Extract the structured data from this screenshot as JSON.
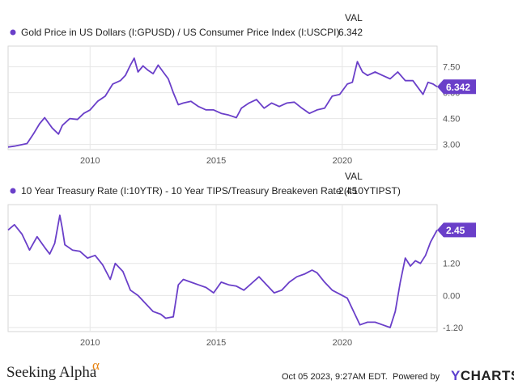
{
  "chart_data": [
    {
      "type": "line",
      "title": "Gold Price in US Dollars (I:GPUSD) / US Consumer Price Index (I:USCPI)",
      "value_header": "VAL",
      "last_value_label": "6.342",
      "last_value": 6.342,
      "y_ticks": [
        "7.50",
        "6.00",
        "4.50",
        "3.00"
      ],
      "y_tick_values": [
        7.5,
        6.0,
        4.5,
        3.0
      ],
      "ylim": [
        2.7,
        8.7
      ],
      "x_ticks": [
        "2010",
        "2015",
        "2020"
      ],
      "x_tick_values": [
        2010,
        2015,
        2020
      ],
      "xlim": [
        2006.75,
        2023.76
      ],
      "color": "#6a3fc9",
      "series": [
        {
          "name": "Gold Price in US Dollars (I:GPUSD) / US Consumer Price Index (I:USCPI)",
          "x": [
            2006.75,
            2007.0,
            2007.5,
            2007.75,
            2008.0,
            2008.2,
            2008.5,
            2008.75,
            2008.9,
            2009.2,
            2009.5,
            2009.75,
            2010.0,
            2010.3,
            2010.6,
            2010.9,
            2011.2,
            2011.4,
            2011.6,
            2011.75,
            2011.9,
            2012.1,
            2012.3,
            2012.5,
            2012.7,
            2012.9,
            2013.1,
            2013.3,
            2013.5,
            2013.7,
            2014.0,
            2014.3,
            2014.6,
            2014.9,
            2015.2,
            2015.5,
            2015.8,
            2016.0,
            2016.3,
            2016.6,
            2016.9,
            2017.2,
            2017.5,
            2017.8,
            2018.1,
            2018.4,
            2018.7,
            2019.0,
            2019.3,
            2019.6,
            2019.9,
            2020.2,
            2020.4,
            2020.6,
            2020.8,
            2021.0,
            2021.3,
            2021.6,
            2021.9,
            2022.2,
            2022.5,
            2022.8,
            2023.0,
            2023.2,
            2023.4,
            2023.6,
            2023.76
          ],
          "values": [
            2.85,
            2.9,
            3.05,
            3.6,
            4.2,
            4.55,
            3.95,
            3.6,
            4.1,
            4.5,
            4.45,
            4.8,
            5.0,
            5.5,
            5.8,
            6.5,
            6.7,
            7.0,
            7.6,
            8.0,
            7.2,
            7.55,
            7.3,
            7.1,
            7.6,
            7.2,
            6.8,
            6.0,
            5.3,
            5.4,
            5.5,
            5.2,
            5.0,
            5.0,
            4.8,
            4.7,
            4.55,
            5.1,
            5.4,
            5.6,
            5.1,
            5.4,
            5.2,
            5.4,
            5.45,
            5.1,
            4.8,
            5.0,
            5.1,
            5.8,
            5.9,
            6.5,
            6.6,
            7.8,
            7.2,
            7.0,
            7.2,
            7.0,
            6.8,
            7.2,
            6.7,
            6.7,
            6.3,
            5.9,
            6.6,
            6.5,
            6.34
          ]
        }
      ]
    },
    {
      "type": "line",
      "title": "10 Year Treasury Rate (I:10YTR) - 10 Year TIPS/Treasury Breakeven Rate   (I:10YTIPST)",
      "value_header": "VAL",
      "last_value_label": "2.45",
      "last_value": 2.45,
      "y_ticks": [
        "1.20",
        "0.00",
        "-1.20"
      ],
      "y_tick_values": [
        1.2,
        0.0,
        -1.2
      ],
      "ylim": [
        -1.35,
        3.4
      ],
      "x_ticks": [
        "2010",
        "2015",
        "2020"
      ],
      "x_tick_values": [
        2010,
        2015,
        2020
      ],
      "xlim": [
        2006.75,
        2023.76
      ],
      "color": "#6a3fc9",
      "series": [
        {
          "name": "10 Year Treasury Rate (I:10YTR) - 10 Year TIPS/Treasury Breakeven Rate (I:10YTIPST)",
          "x": [
            2006.75,
            2007.0,
            2007.3,
            2007.6,
            2007.9,
            2008.2,
            2008.4,
            2008.6,
            2008.8,
            2008.9,
            2009.0,
            2009.3,
            2009.6,
            2009.9,
            2010.2,
            2010.5,
            2010.8,
            2011.0,
            2011.3,
            2011.6,
            2011.9,
            2012.2,
            2012.5,
            2012.8,
            2013.0,
            2013.3,
            2013.5,
            2013.7,
            2014.0,
            2014.3,
            2014.6,
            2014.9,
            2015.2,
            2015.5,
            2015.8,
            2016.1,
            2016.4,
            2016.7,
            2017.0,
            2017.3,
            2017.6,
            2017.9,
            2018.2,
            2018.5,
            2018.8,
            2019.0,
            2019.3,
            2019.6,
            2019.9,
            2020.2,
            2020.4,
            2020.7,
            2021.0,
            2021.3,
            2021.6,
            2021.9,
            2022.1,
            2022.3,
            2022.5,
            2022.7,
            2022.9,
            2023.1,
            2023.3,
            2023.5,
            2023.76
          ],
          "values": [
            2.45,
            2.65,
            2.3,
            1.7,
            2.2,
            1.8,
            1.55,
            1.95,
            3.0,
            2.5,
            1.9,
            1.7,
            1.65,
            1.4,
            1.5,
            1.15,
            0.6,
            1.2,
            0.9,
            0.2,
            0.0,
            -0.3,
            -0.6,
            -0.7,
            -0.85,
            -0.8,
            0.4,
            0.6,
            0.5,
            0.4,
            0.3,
            0.1,
            0.5,
            0.4,
            0.35,
            0.2,
            0.45,
            0.7,
            0.4,
            0.1,
            0.2,
            0.5,
            0.7,
            0.8,
            0.95,
            0.85,
            0.5,
            0.2,
            0.05,
            -0.1,
            -0.5,
            -1.1,
            -1.0,
            -1.0,
            -1.1,
            -1.2,
            -0.6,
            0.5,
            1.4,
            1.1,
            1.3,
            1.2,
            1.5,
            2.0,
            2.45
          ]
        }
      ]
    }
  ],
  "footer": {
    "date_text": "Oct 05 2023, 9:27AM EDT.",
    "powered_by": "Powered by",
    "brand_y": "Y",
    "brand_rest": "CHARTS",
    "logo_text": "Seeking Alpha",
    "logo_alpha": "α"
  }
}
